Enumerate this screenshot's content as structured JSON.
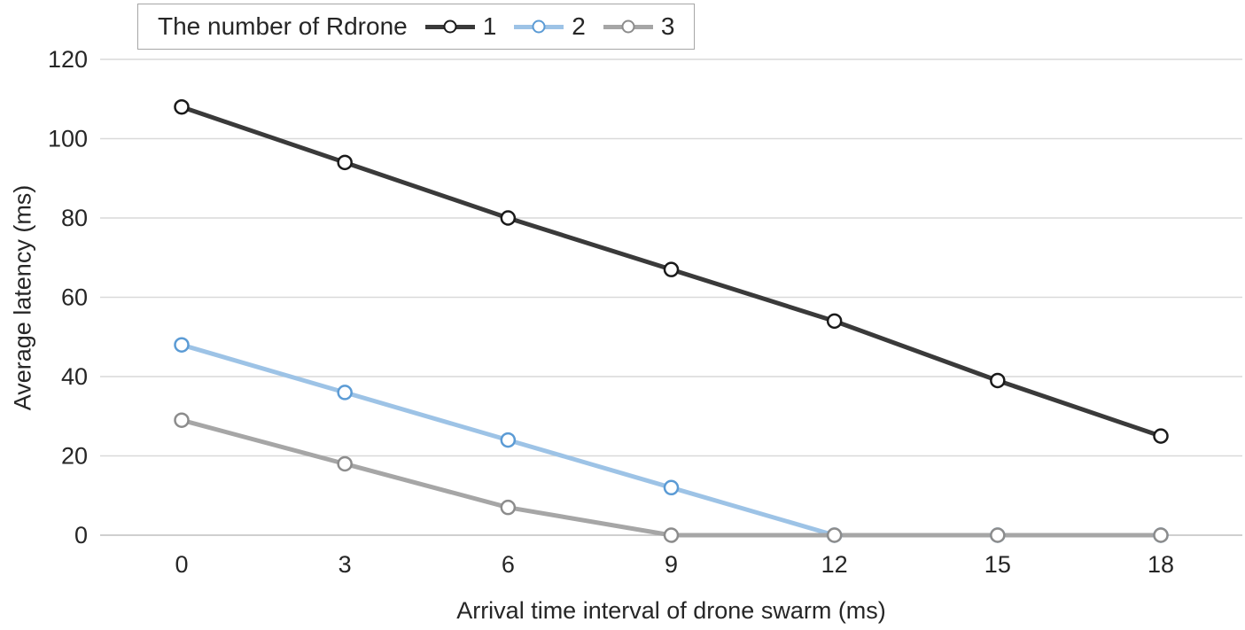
{
  "chart_data": {
    "type": "line",
    "legend_title": "The number of Rdrone",
    "xlabel": "Arrival time interval of drone swarm (ms)",
    "ylabel": "Average latency (ms)",
    "x": [
      0,
      3,
      6,
      9,
      12,
      15,
      18
    ],
    "xticks": [
      0,
      3,
      6,
      9,
      12,
      15,
      18
    ],
    "yticks": [
      0,
      20,
      40,
      60,
      80,
      100,
      120
    ],
    "xlim": [
      0,
      18
    ],
    "ylim": [
      0,
      120
    ],
    "grid": "horizontal",
    "legend_position": "top-left",
    "series": [
      {
        "name": "1",
        "color": "#3a3a3a",
        "marker_color": "#1a1a1a",
        "values": [
          108,
          94,
          80,
          67,
          54,
          39,
          25
        ]
      },
      {
        "name": "2",
        "color": "#9dc3e6",
        "marker_color": "#5b9bd5",
        "values": [
          48,
          36,
          24,
          12,
          0,
          0,
          0
        ]
      },
      {
        "name": "3",
        "color": "#a6a6a6",
        "marker_color": "#8c8c8c",
        "values": [
          29,
          18,
          7,
          0,
          0,
          0,
          0
        ]
      }
    ],
    "colors": {
      "gridline": "#d9d9d9",
      "axis_line": "#bfbfbf",
      "text": "#262626",
      "marker_fill": "#ffffff",
      "legend_border": "#a6a6a6",
      "background": "#ffffff"
    }
  }
}
